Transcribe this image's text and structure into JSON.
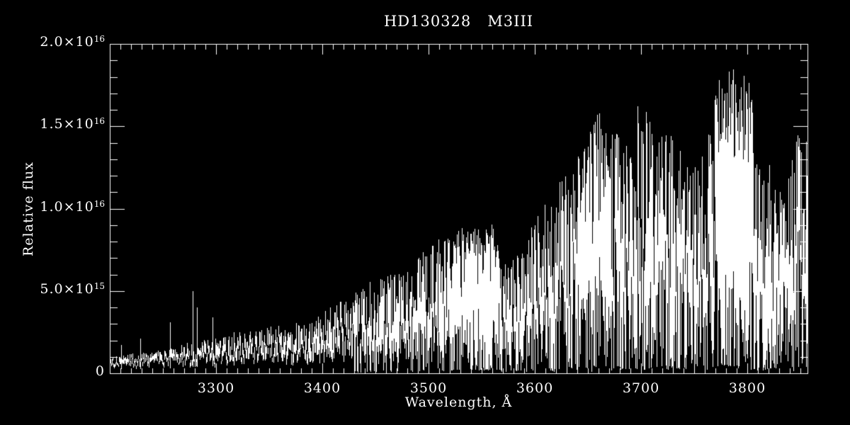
{
  "figure": {
    "background_color": "#000000",
    "foreground_color": "#ffffff"
  },
  "chart_data": {
    "type": "line",
    "subtype": "spectrum",
    "title": "HD130328   M3III",
    "xlabel": "Wavelength, Å",
    "ylabel": "Relative flux",
    "xlim": [
      3200,
      3857
    ],
    "ylim": [
      0,
      2e+16
    ],
    "grid": false,
    "legend": "none",
    "x_major_tick_interval": 100,
    "x_minor_tick_interval": 10,
    "y_major_tick_interval": 5000000000000000.0,
    "y_minor_tick_interval": 1000000000000000.0,
    "x_ticks": [
      {
        "value": 3300,
        "label": "3300"
      },
      {
        "value": 3400,
        "label": "3400"
      },
      {
        "value": 3500,
        "label": "3500"
      },
      {
        "value": 3600,
        "label": "3600"
      },
      {
        "value": 3700,
        "label": "3700"
      },
      {
        "value": 3800,
        "label": "3800"
      }
    ],
    "y_ticks": [
      {
        "value": 0,
        "mantissa": "0",
        "exponent": ""
      },
      {
        "value": 5000000000000000.0,
        "mantissa": "5.0×10",
        "exponent": "15"
      },
      {
        "value": 1e+16,
        "mantissa": "1.0×10",
        "exponent": "16"
      },
      {
        "value": 1.5e+16,
        "mantissa": "1.5×10",
        "exponent": "16"
      },
      {
        "value": 2e+16,
        "mantissa": "2.0×10",
        "exponent": "16"
      }
    ],
    "upper_envelope": {
      "wavelength_A": [
        3200,
        3220,
        3240,
        3260,
        3280,
        3300,
        3320,
        3340,
        3360,
        3380,
        3400,
        3420,
        3440,
        3460,
        3480,
        3500,
        3515,
        3530,
        3545,
        3560,
        3575,
        3590,
        3600,
        3615,
        3630,
        3645,
        3660,
        3670,
        3685,
        3700,
        3715,
        3730,
        3745,
        3760,
        3775,
        3785,
        3800,
        3815,
        3825,
        3835,
        3845,
        3857
      ],
      "flux_1e15": [
        1.0,
        1.2,
        1.3,
        1.6,
        2.0,
        2.2,
        2.5,
        2.6,
        3.0,
        3.2,
        3.8,
        4.5,
        5.5,
        6.2,
        6.5,
        8.0,
        8.3,
        8.8,
        9.3,
        9.2,
        6.8,
        7.5,
        9.8,
        11.5,
        12.5,
        13.5,
        16.0,
        15.5,
        14.0,
        17.0,
        14.5,
        14.5,
        12.5,
        13.5,
        18.5,
        19.0,
        18.0,
        15.0,
        11.5,
        11.0,
        14.0,
        16.5
      ]
    },
    "lower_band_fraction": {
      "wavelength_A": [
        3200,
        3250,
        3300,
        3350,
        3400,
        3450,
        3500,
        3550,
        3857
      ],
      "frac": [
        0.55,
        0.5,
        0.45,
        0.4,
        0.3,
        0.18,
        0.08,
        0.04,
        0.04
      ]
    },
    "emission_spikes": [
      {
        "wavelength_A": 3211,
        "flux_1e15": 1.7
      },
      {
        "wavelength_A": 3229,
        "flux_1e15": 2.1
      },
      {
        "wavelength_A": 3257,
        "flux_1e15": 3.1
      },
      {
        "wavelength_A": 3278,
        "flux_1e15": 5.0
      },
      {
        "wavelength_A": 3282,
        "flux_1e15": 4.0
      },
      {
        "wavelength_A": 3297,
        "flux_1e15": 3.4
      },
      {
        "wavelength_A": 3317,
        "flux_1e15": 2.5
      },
      {
        "wavelength_A": 3388,
        "flux_1e15": 3.0
      }
    ],
    "dense_regions": [
      [
        3520,
        3565
      ],
      [
        3640,
        3672
      ],
      [
        3770,
        3805
      ]
    ],
    "line_color": "#ffffff",
    "seed": 20
  }
}
